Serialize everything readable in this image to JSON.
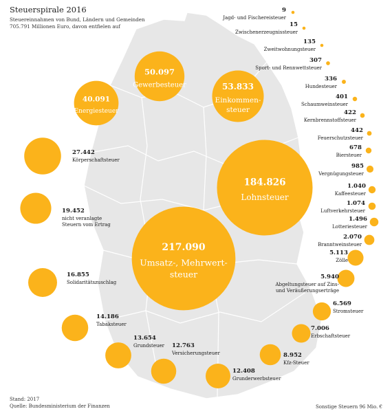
{
  "header": {
    "title": "Steuerspirale 2016",
    "subtitle": "Steuereinnahmen von Bund, Ländern und Gemeinden 705.791 Millionen Euro, davon entfielen auf"
  },
  "footer": {
    "stand": "Stand: 2017",
    "quelle": "Quelle: Bundesministerium der Finanzen",
    "sonstige": "Sonstige Steuern 96 Mio. €"
  },
  "colors": {
    "bubble": "#FBB31B",
    "map": "#E7E7E7",
    "map_border": "#FFFFFF",
    "text": "#1A1A1A",
    "text_inside": "#FFFFFF"
  },
  "chart_data": {
    "type": "bubble",
    "title": "Steuerspirale 2016",
    "unit": "Mio. €",
    "total": 705791,
    "values": [
      {
        "name": "Umsatz-, Mehrwertsteuer",
        "value": "217.090",
        "amount": 217090
      },
      {
        "name": "Lohnsteuer",
        "value": "184.826",
        "amount": 184826
      },
      {
        "name": "Einkommensteuer",
        "value": "53.833",
        "amount": 53833
      },
      {
        "name": "Gewerbesteuer",
        "value": "50.097",
        "amount": 50097
      },
      {
        "name": "Energiesteuer",
        "value": "40.091",
        "amount": 40091
      },
      {
        "name": "Körperschaftsteuer",
        "value": "27.442",
        "amount": 27442
      },
      {
        "name": "nicht veranlagte Steuern vom Ertrag",
        "value": "19.452",
        "amount": 19452
      },
      {
        "name": "Solidaritätszuschlag",
        "value": "16.855",
        "amount": 16855
      },
      {
        "name": "Tabaksteuer",
        "value": "14.186",
        "amount": 14186
      },
      {
        "name": "Grundsteuer",
        "value": "13.654",
        "amount": 13654
      },
      {
        "name": "Versicherungsteuer",
        "value": "12.763",
        "amount": 12763
      },
      {
        "name": "Grunderwerbsteuer",
        "value": "12.408",
        "amount": 12408
      },
      {
        "name": "Kfz-Steuer",
        "value": "8.952",
        "amount": 8952
      },
      {
        "name": "Erbschaftsteuer",
        "value": "7.006",
        "amount": 7006
      },
      {
        "name": "Stromsteuer",
        "value": "6.569",
        "amount": 6569
      },
      {
        "name": "Abgeltungsteuer auf Zins- und Veräußerungserträge",
        "value": "5.940",
        "amount": 5940
      },
      {
        "name": "Zölle",
        "value": "5.113",
        "amount": 5113
      },
      {
        "name": "Branntweinsteuer",
        "value": "2.070",
        "amount": 2070
      },
      {
        "name": "Lotteriesteuer",
        "value": "1.496",
        "amount": 1496
      },
      {
        "name": "Luftverkehrsteuer",
        "value": "1.074",
        "amount": 1074
      },
      {
        "name": "Kaffeesteuer",
        "value": "1.040",
        "amount": 1040
      },
      {
        "name": "Vergnügungsteuer",
        "value": "985",
        "amount": 985
      },
      {
        "name": "Biersteuer",
        "value": "678",
        "amount": 678
      },
      {
        "name": "Feuerschutzsteuer",
        "value": "442",
        "amount": 442
      },
      {
        "name": "Kernbrennstoffsteuer",
        "value": "422",
        "amount": 422
      },
      {
        "name": "Schaumweinsteuer",
        "value": "401",
        "amount": 401
      },
      {
        "name": "Hundesteuer",
        "value": "336",
        "amount": 336
      },
      {
        "name": "Sport- und Rennwettsteuer",
        "value": "307",
        "amount": 307
      },
      {
        "name": "Zweitwohnungsteuer",
        "value": "135",
        "amount": 135
      },
      {
        "name": "Zwischenerzeugnissteuer",
        "value": "15",
        "amount": 15
      },
      {
        "name": "Jagd- und Fischereisteuer",
        "value": "9",
        "amount": 9
      }
    ],
    "labels_inside": {
      "Umsatz-, Mehrwertsteuer": [
        "Umsatz-, Mehrwert-",
        "steuer"
      ],
      "Lohnsteuer": [
        "Lohnsteuer"
      ],
      "Einkommensteuer": [
        "Einkommen-",
        "steuer"
      ],
      "Gewerbesteuer": [
        "Gewerbesteuer"
      ],
      "Energiesteuer": [
        "Energiesteuer"
      ]
    },
    "labels_outside": {
      "nicht veranlagte Steuern vom Ertrag": [
        "nicht veranlagte",
        "Steuern vom Ertrag"
      ],
      "Abgeltungsteuer auf Zins- und Veräußerungserträge": [
        "Abgeltungsteuer auf Zins-",
        "und Veräußerungserträge"
      ]
    }
  }
}
